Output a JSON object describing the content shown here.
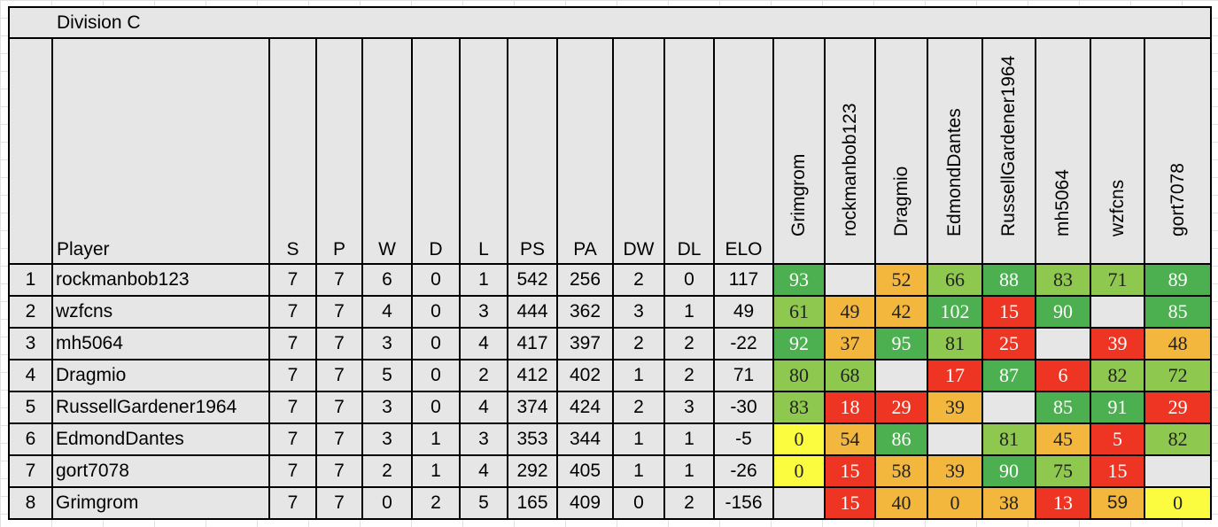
{
  "division_title": "Division C",
  "headers": {
    "player": "Player",
    "stats": [
      "S",
      "P",
      "W",
      "D",
      "L",
      "PS",
      "PA",
      "DW",
      "DL",
      "ELO"
    ],
    "opponents": [
      "Grimgrom",
      "rockmanbob123",
      "Dragmio",
      "EdmondDantes",
      "RussellGardener1964",
      "mh5064",
      "wzfcns",
      "gort7078"
    ]
  },
  "colors": {
    "dark_green": "#4caf50",
    "light_green": "#8fc84f",
    "orange": "#f4b73e",
    "red": "#ee3523",
    "yellow": "#fbfb3f",
    "header_gray": "#e6e6e6"
  },
  "rows": [
    {
      "rank": "1",
      "player": "rockmanbob123",
      "stats": [
        "7",
        "7",
        "6",
        "0",
        "1",
        "542",
        "256",
        "2",
        "0",
        "117"
      ],
      "scores": [
        {
          "v": "93",
          "c": "dg"
        },
        {
          "v": "",
          "c": "em"
        },
        {
          "v": "52",
          "c": "or"
        },
        {
          "v": "66",
          "c": "lg"
        },
        {
          "v": "88",
          "c": "dg"
        },
        {
          "v": "83",
          "c": "lg"
        },
        {
          "v": "71",
          "c": "lg"
        },
        {
          "v": "89",
          "c": "dg"
        }
      ]
    },
    {
      "rank": "2",
      "player": "wzfcns",
      "stats": [
        "7",
        "7",
        "4",
        "0",
        "3",
        "444",
        "362",
        "3",
        "1",
        "49"
      ],
      "scores": [
        {
          "v": "61",
          "c": "lg"
        },
        {
          "v": "49",
          "c": "or"
        },
        {
          "v": "42",
          "c": "or"
        },
        {
          "v": "102",
          "c": "dg"
        },
        {
          "v": "15",
          "c": "rd"
        },
        {
          "v": "90",
          "c": "dg"
        },
        {
          "v": "",
          "c": "em"
        },
        {
          "v": "85",
          "c": "dg"
        }
      ]
    },
    {
      "rank": "3",
      "player": "mh5064",
      "stats": [
        "7",
        "7",
        "3",
        "0",
        "4",
        "417",
        "397",
        "2",
        "2",
        "-22"
      ],
      "scores": [
        {
          "v": "92",
          "c": "dg"
        },
        {
          "v": "37",
          "c": "or"
        },
        {
          "v": "95",
          "c": "dg"
        },
        {
          "v": "81",
          "c": "lg"
        },
        {
          "v": "25",
          "c": "rd"
        },
        {
          "v": "",
          "c": "em"
        },
        {
          "v": "39",
          "c": "rd"
        },
        {
          "v": "48",
          "c": "or"
        }
      ]
    },
    {
      "rank": "4",
      "player": "Dragmio",
      "stats": [
        "7",
        "7",
        "5",
        "0",
        "2",
        "412",
        "402",
        "1",
        "2",
        "71"
      ],
      "scores": [
        {
          "v": "80",
          "c": "lg"
        },
        {
          "v": "68",
          "c": "lg"
        },
        {
          "v": "",
          "c": "em"
        },
        {
          "v": "17",
          "c": "rd"
        },
        {
          "v": "87",
          "c": "dg"
        },
        {
          "v": "6",
          "c": "rd"
        },
        {
          "v": "82",
          "c": "lg"
        },
        {
          "v": "72",
          "c": "lg"
        }
      ]
    },
    {
      "rank": "5",
      "player": "RussellGardener1964",
      "stats": [
        "7",
        "7",
        "3",
        "0",
        "4",
        "374",
        "424",
        "2",
        "3",
        "-30"
      ],
      "scores": [
        {
          "v": "83",
          "c": "lg"
        },
        {
          "v": "18",
          "c": "rd"
        },
        {
          "v": "29",
          "c": "rd"
        },
        {
          "v": "39",
          "c": "or"
        },
        {
          "v": "",
          "c": "em"
        },
        {
          "v": "85",
          "c": "dg"
        },
        {
          "v": "91",
          "c": "dg"
        },
        {
          "v": "29",
          "c": "rd"
        }
      ]
    },
    {
      "rank": "6",
      "player": "EdmondDantes",
      "stats": [
        "7",
        "7",
        "3",
        "1",
        "3",
        "353",
        "344",
        "1",
        "1",
        "-5"
      ],
      "scores": [
        {
          "v": "0",
          "c": "yl"
        },
        {
          "v": "54",
          "c": "or"
        },
        {
          "v": "86",
          "c": "dg"
        },
        {
          "v": "",
          "c": "em"
        },
        {
          "v": "81",
          "c": "lg"
        },
        {
          "v": "45",
          "c": "or"
        },
        {
          "v": "5",
          "c": "rd"
        },
        {
          "v": "82",
          "c": "lg"
        }
      ]
    },
    {
      "rank": "7",
      "player": "gort7078",
      "stats": [
        "7",
        "7",
        "2",
        "1",
        "4",
        "292",
        "405",
        "1",
        "1",
        "-26"
      ],
      "scores": [
        {
          "v": "0",
          "c": "yl"
        },
        {
          "v": "15",
          "c": "rd"
        },
        {
          "v": "58",
          "c": "or"
        },
        {
          "v": "39",
          "c": "or"
        },
        {
          "v": "90",
          "c": "dg"
        },
        {
          "v": "75",
          "c": "lg"
        },
        {
          "v": "15",
          "c": "rd"
        },
        {
          "v": "",
          "c": "em"
        }
      ]
    },
    {
      "rank": "8",
      "player": "Grimgrom",
      "stats": [
        "7",
        "7",
        "0",
        "2",
        "5",
        "165",
        "409",
        "0",
        "2",
        "-156"
      ],
      "scores": [
        {
          "v": "",
          "c": "em"
        },
        {
          "v": "15",
          "c": "rd"
        },
        {
          "v": "40",
          "c": "or"
        },
        {
          "v": "0",
          "c": "or"
        },
        {
          "v": "38",
          "c": "or"
        },
        {
          "v": "13",
          "c": "rd"
        },
        {
          "v": "59",
          "c": "or",
          "sans": true
        },
        {
          "v": "0",
          "c": "yl"
        }
      ]
    }
  ]
}
